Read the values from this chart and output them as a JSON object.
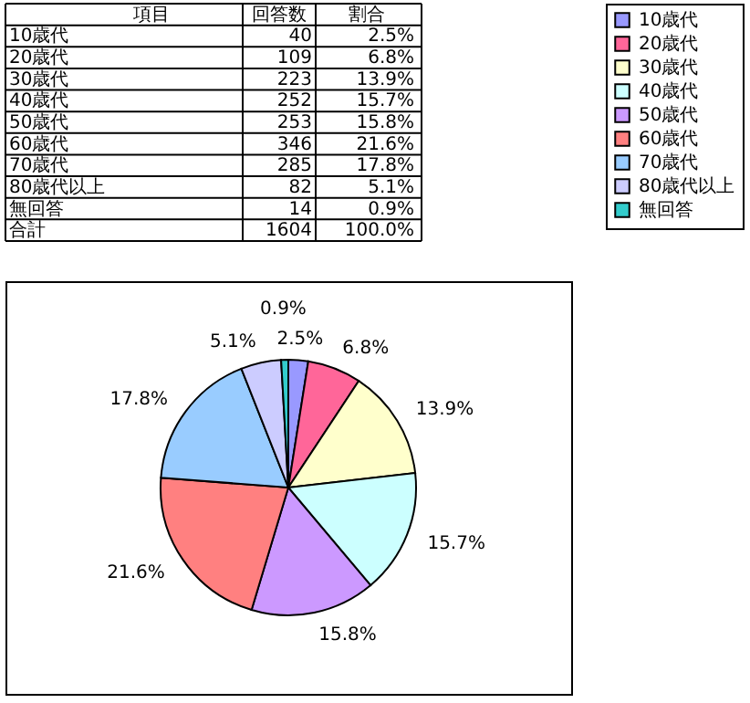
{
  "chart_data": {
    "type": "pie",
    "categories": [
      "10歳代",
      "20歳代",
      "30歳代",
      "40歳代",
      "50歳代",
      "60歳代",
      "70歳代",
      "80歳代以上",
      "無回答"
    ],
    "values": [
      2.5,
      6.8,
      13.9,
      15.7,
      15.8,
      21.6,
      17.8,
      5.1,
      0.9
    ],
    "value_labels": [
      "2.5%",
      "6.8%",
      "13.9%",
      "15.7%",
      "15.8%",
      "21.6%",
      "17.8%",
      "5.1%",
      "0.9%"
    ],
    "colors": [
      "#9999ff",
      "#ff6699",
      "#ffffcc",
      "#ccffff",
      "#cc99ff",
      "#ff8080",
      "#99ccff",
      "#ccccff",
      "#33cccc"
    ],
    "legend": "right",
    "annotations": [
      "項目",
      "回答数",
      "割合",
      "40",
      "109",
      "223",
      "252",
      "253",
      "346",
      "285",
      "82",
      "14",
      "合計",
      "1604",
      "100.0%"
    ]
  }
}
